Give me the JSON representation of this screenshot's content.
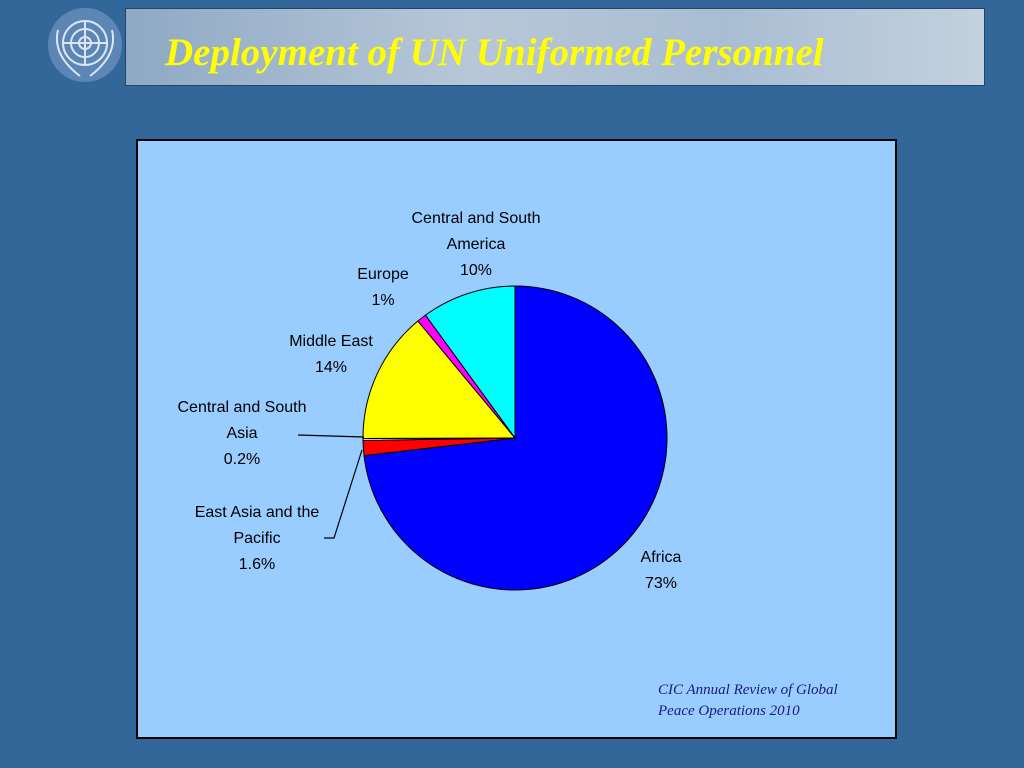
{
  "chart_data": {
    "type": "pie",
    "title": "Deployment of UN Uniformed Personnel",
    "categories": [
      "Africa",
      "East Asia and the Pacific",
      "Central and South Asia",
      "Middle East",
      "Europe",
      "Central and South America"
    ],
    "values": [
      73,
      1.6,
      0.2,
      14,
      1,
      10
    ],
    "value_labels": [
      "73%",
      "1.6%",
      "0.2%",
      "14%",
      "1%",
      "10%"
    ],
    "colors": [
      "#0000ff",
      "#ff0000",
      "#ffffff",
      "#ffff00",
      "#ff00ff",
      "#00ffff"
    ],
    "source": "CIC Annual Review of Global Peace Operations 2010"
  }
}
